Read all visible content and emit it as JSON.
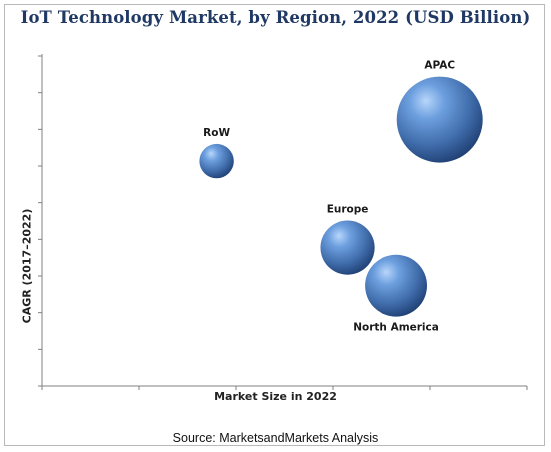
{
  "title": "IoT Technology Market, by Region, 2022 (USD Billion)",
  "source": "Source: MarketsandMarkets Analysis",
  "chart_data": {
    "type": "scatter",
    "variant": "bubble",
    "title": "IoT Technology Market, by Region, 2022 (USD Billion)",
    "xlabel": "Market Size in 2022",
    "ylabel": "CAGR (2017–2022)",
    "x_tick_labels_shown": false,
    "y_tick_labels_shown": false,
    "relative_scale": {
      "xlim": [
        0,
        10
      ],
      "ylim": [
        0,
        10
      ]
    },
    "points": [
      {
        "label": "APAC",
        "x": 8.2,
        "y": 7.7,
        "size": 1.0
      },
      {
        "label": "RoW",
        "x": 3.6,
        "y": 6.5,
        "size": 0.4
      },
      {
        "label": "Europe",
        "x": 6.3,
        "y": 4.0,
        "size": 0.63
      },
      {
        "label": "North America",
        "x": 7.3,
        "y": 2.9,
        "size": 0.72
      }
    ],
    "colors": {
      "bubble_light": "#9dc3f4",
      "bubble_mid": "#4a79b9",
      "bubble_dark": "#1f3f73",
      "axis": "#808080"
    },
    "grid": false,
    "legend": "none"
  }
}
